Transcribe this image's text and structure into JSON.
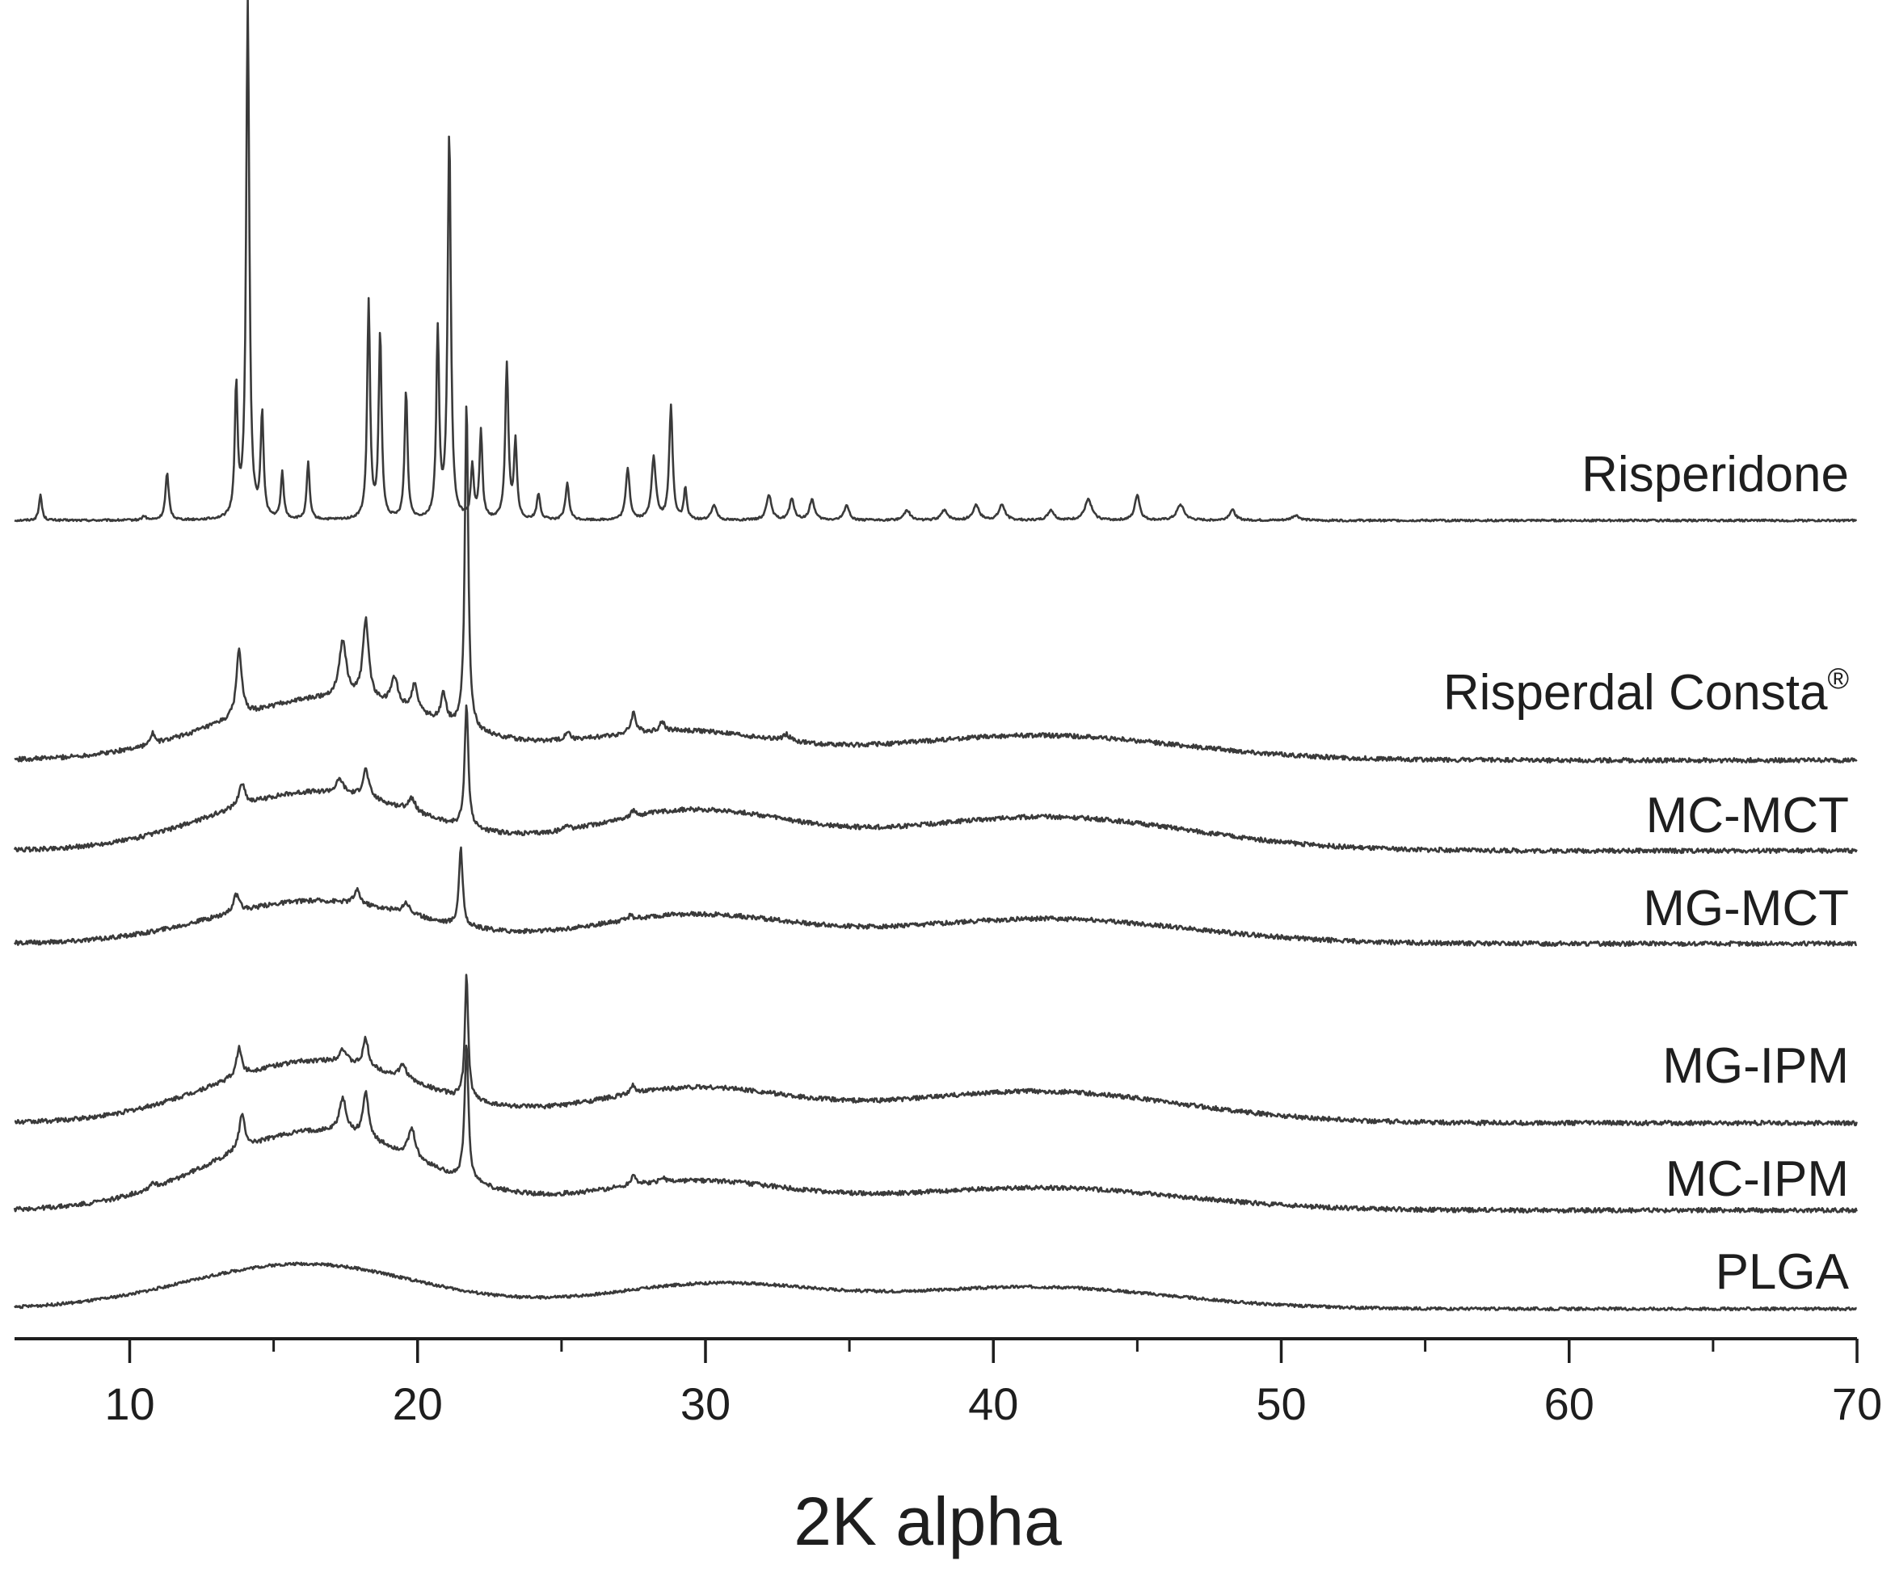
{
  "chart_data": {
    "type": "line",
    "title": "",
    "xlabel": "2K alpha",
    "ylabel": "",
    "xlim": [
      6,
      70
    ],
    "x_ticks": [
      10,
      20,
      30,
      40,
      50,
      60,
      70
    ],
    "x_minor_step": 5,
    "grid": false,
    "legend": "none (series labeled directly at right end of each trace)",
    "series": [
      {
        "name": "Risperidone",
        "label_suffix": "",
        "baseline": 0.02,
        "peaks": [
          [
            6.9,
            0.05,
            0.12
          ],
          [
            10.5,
            0.008,
            0.15
          ],
          [
            11.3,
            0.09,
            0.14
          ],
          [
            13.7,
            0.25,
            0.12
          ],
          [
            14.1,
            1.0,
            0.13
          ],
          [
            14.6,
            0.2,
            0.12
          ],
          [
            15.3,
            0.09,
            0.12
          ],
          [
            16.2,
            0.11,
            0.12
          ],
          [
            18.3,
            0.42,
            0.12
          ],
          [
            18.7,
            0.36,
            0.12
          ],
          [
            19.6,
            0.25,
            0.12
          ],
          [
            20.7,
            0.36,
            0.12
          ],
          [
            21.1,
            0.75,
            0.13
          ],
          [
            21.9,
            0.1,
            0.12
          ],
          [
            22.2,
            0.17,
            0.12
          ],
          [
            23.1,
            0.3,
            0.13
          ],
          [
            23.4,
            0.15,
            0.12
          ],
          [
            24.2,
            0.05,
            0.14
          ],
          [
            25.2,
            0.07,
            0.15
          ],
          [
            27.3,
            0.1,
            0.16
          ],
          [
            28.2,
            0.12,
            0.18
          ],
          [
            28.8,
            0.22,
            0.14
          ],
          [
            29.3,
            0.06,
            0.12
          ],
          [
            30.3,
            0.03,
            0.2
          ],
          [
            32.2,
            0.05,
            0.2
          ],
          [
            33.0,
            0.04,
            0.2
          ],
          [
            33.7,
            0.04,
            0.2
          ],
          [
            34.9,
            0.03,
            0.2
          ],
          [
            37.0,
            0.02,
            0.25
          ],
          [
            38.3,
            0.02,
            0.25
          ],
          [
            39.4,
            0.03,
            0.25
          ],
          [
            40.3,
            0.03,
            0.25
          ],
          [
            42.0,
            0.02,
            0.25
          ],
          [
            43.3,
            0.04,
            0.3
          ],
          [
            45.0,
            0.05,
            0.2
          ],
          [
            46.5,
            0.03,
            0.3
          ],
          [
            48.3,
            0.02,
            0.25
          ],
          [
            50.5,
            0.01,
            0.3
          ]
        ],
        "humps": []
      },
      {
        "name": "Risperdal Consta",
        "label_suffix": "®",
        "baseline": 0.0,
        "peaks": [
          [
            10.8,
            0.01,
            0.15
          ],
          [
            13.8,
            0.06,
            0.22
          ],
          [
            17.4,
            0.05,
            0.3
          ],
          [
            18.2,
            0.07,
            0.25
          ],
          [
            19.2,
            0.025,
            0.3
          ],
          [
            19.9,
            0.025,
            0.25
          ],
          [
            20.9,
            0.025,
            0.2
          ],
          [
            21.7,
            0.29,
            0.14
          ],
          [
            25.2,
            0.008,
            0.2
          ],
          [
            27.5,
            0.018,
            0.2
          ],
          [
            28.5,
            0.008,
            0.2
          ],
          [
            32.8,
            0.006,
            0.3
          ]
        ],
        "humps": [
          [
            17,
            0.055,
            3.8
          ],
          [
            29,
            0.025,
            3.2
          ],
          [
            41.5,
            0.022,
            5.0
          ]
        ]
      },
      {
        "name": "MC-MCT",
        "label_suffix": "",
        "baseline": 0.0,
        "peaks": [
          [
            13.9,
            0.02,
            0.25
          ],
          [
            17.3,
            0.012,
            0.3
          ],
          [
            18.2,
            0.025,
            0.25
          ],
          [
            19.8,
            0.012,
            0.3
          ],
          [
            21.7,
            0.11,
            0.15
          ],
          [
            25.2,
            0.005,
            0.2
          ],
          [
            27.5,
            0.005,
            0.2
          ]
        ],
        "humps": [
          [
            16.5,
            0.052,
            3.6
          ],
          [
            29.5,
            0.035,
            3.4
          ],
          [
            41.8,
            0.03,
            5.0
          ]
        ]
      },
      {
        "name": "MG-MCT",
        "label_suffix": "",
        "baseline": 0.0,
        "peaks": [
          [
            13.7,
            0.015,
            0.25
          ],
          [
            17.9,
            0.012,
            0.25
          ],
          [
            19.6,
            0.01,
            0.3
          ],
          [
            21.5,
            0.07,
            0.15
          ],
          [
            27.4,
            0.004,
            0.2
          ]
        ],
        "humps": [
          [
            16.5,
            0.038,
            3.6
          ],
          [
            29.5,
            0.025,
            3.4
          ],
          [
            41.8,
            0.022,
            5.0
          ]
        ]
      },
      {
        "name": "MG-IPM",
        "label_suffix": "",
        "baseline": 0.0,
        "peaks": [
          [
            13.8,
            0.025,
            0.22
          ],
          [
            17.4,
            0.012,
            0.3
          ],
          [
            18.2,
            0.025,
            0.22
          ],
          [
            19.5,
            0.012,
            0.3
          ],
          [
            21.7,
            0.11,
            0.14
          ],
          [
            27.5,
            0.007,
            0.2
          ]
        ],
        "humps": [
          [
            16.5,
            0.055,
            3.6
          ],
          [
            29.5,
            0.03,
            3.4
          ],
          [
            41.5,
            0.028,
            5.0
          ]
        ]
      },
      {
        "name": "MC-IPM",
        "label_suffix": "",
        "baseline": 0.0,
        "peaks": [
          [
            10.8,
            0.005,
            0.2
          ],
          [
            13.9,
            0.03,
            0.25
          ],
          [
            17.4,
            0.03,
            0.3
          ],
          [
            18.2,
            0.04,
            0.25
          ],
          [
            19.8,
            0.025,
            0.3
          ],
          [
            21.7,
            0.12,
            0.16
          ],
          [
            27.5,
            0.01,
            0.2
          ],
          [
            28.5,
            0.005,
            0.2
          ]
        ],
        "humps": [
          [
            16.5,
            0.07,
            3.6
          ],
          [
            29.5,
            0.025,
            3.4
          ],
          [
            41.5,
            0.02,
            5.0
          ]
        ]
      },
      {
        "name": "PLGA",
        "label_suffix": "",
        "baseline": 0.0,
        "peaks": [],
        "humps": [
          [
            16,
            0.062,
            4.0
          ],
          [
            30.3,
            0.034,
            3.6
          ],
          [
            41.5,
            0.03,
            4.6
          ]
        ]
      }
    ]
  }
}
